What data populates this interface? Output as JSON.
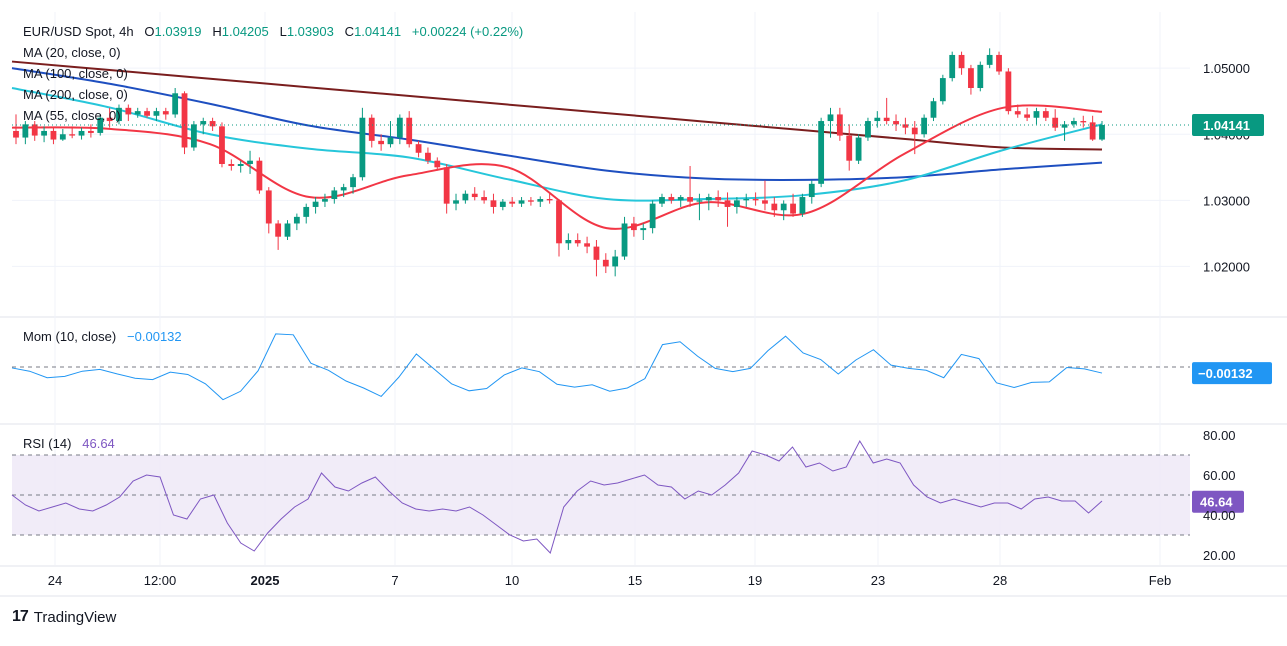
{
  "header": {
    "symbol": "EUR/USD Spot, 4h",
    "open_label": "O",
    "open": "1.03919",
    "high_label": "H",
    "high": "1.04205",
    "low_label": "L",
    "low": "1.03903",
    "close_label": "C",
    "close": "1.04141",
    "change": "+0.00224 (+0.22%)"
  },
  "ma_legend": [
    "MA (20, close, 0)",
    "MA (100, close, 0)",
    "MA (200, close, 0)",
    "MA (55, close, 0)"
  ],
  "momentum": {
    "label": "Mom (10, close)",
    "value": "−0.00132",
    "badge": "−0.00132"
  },
  "rsi": {
    "label": "RSI (14)",
    "value": "46.64",
    "badge": "46.64"
  },
  "price_badge": "1.04141",
  "branding": {
    "name": "TradingView",
    "logo": "17"
  },
  "colors": {
    "up": "#089981",
    "down": "#f23645",
    "ma20": "#f23645",
    "ma55": "#26c6da",
    "ma100": "#1e4fc0",
    "ma200": "#7a1e1e",
    "momentum": "#2196f3",
    "rsi": "#7e57c2",
    "rsi_band": "#ede7f6",
    "grid": "#f0f3fa",
    "axis_text": "#131722"
  },
  "chart_data": [
    {
      "type": "candlestick",
      "title": "EUR/USD Spot, 4h",
      "x_tick_labels": [
        "24",
        "12:00",
        "2025",
        "7",
        "10",
        "15",
        "19",
        "23",
        "28",
        "Feb"
      ],
      "y_ticks": [
        "1.02000",
        "1.03000",
        "1.04000",
        "1.05000"
      ],
      "ylim": [
        1.0125,
        1.0585
      ],
      "candles_ohlc": [
        [
          1.0405,
          1.043,
          1.0385,
          1.0395
        ],
        [
          1.0395,
          1.042,
          1.0385,
          1.0415
        ],
        [
          1.0415,
          1.042,
          1.039,
          1.0398
        ],
        [
          1.0398,
          1.0412,
          1.0388,
          1.0405
        ],
        [
          1.0405,
          1.041,
          1.0385,
          1.0392
        ],
        [
          1.0392,
          1.0408,
          1.039,
          1.04
        ],
        [
          1.04,
          1.0412,
          1.0394,
          1.0398
        ],
        [
          1.0398,
          1.041,
          1.0392,
          1.0405
        ],
        [
          1.0405,
          1.0415,
          1.0395,
          1.0402
        ],
        [
          1.0402,
          1.043,
          1.0398,
          1.0425
        ],
        [
          1.0425,
          1.044,
          1.041,
          1.042
        ],
        [
          1.042,
          1.0445,
          1.0415,
          1.044
        ],
        [
          1.044,
          1.0445,
          1.042,
          1.043
        ],
        [
          1.043,
          1.044,
          1.0425,
          1.0435
        ],
        [
          1.0435,
          1.044,
          1.0425,
          1.0428
        ],
        [
          1.0428,
          1.044,
          1.042,
          1.0435
        ],
        [
          1.0435,
          1.044,
          1.0422,
          1.043
        ],
        [
          1.043,
          1.047,
          1.0425,
          1.0462
        ],
        [
          1.0462,
          1.0465,
          1.037,
          1.038
        ],
        [
          1.038,
          1.042,
          1.0375,
          1.0415
        ],
        [
          1.0415,
          1.0425,
          1.04,
          1.042
        ],
        [
          1.042,
          1.0425,
          1.0405,
          1.0412
        ],
        [
          1.0412,
          1.0418,
          1.035,
          1.0355
        ],
        [
          1.0355,
          1.0362,
          1.0345,
          1.0352
        ],
        [
          1.0352,
          1.036,
          1.0342,
          1.0355
        ],
        [
          1.0355,
          1.0375,
          1.034,
          1.036
        ],
        [
          1.036,
          1.0365,
          1.031,
          1.0315
        ],
        [
          1.0315,
          1.032,
          1.025,
          1.0265
        ],
        [
          1.0265,
          1.027,
          1.0225,
          1.0245
        ],
        [
          1.0245,
          1.027,
          1.024,
          1.0265
        ],
        [
          1.0265,
          1.028,
          1.0255,
          1.0275
        ],
        [
          1.0275,
          1.0295,
          1.0265,
          1.029
        ],
        [
          1.029,
          1.0305,
          1.028,
          1.0298
        ],
        [
          1.0298,
          1.031,
          1.029,
          1.0302
        ],
        [
          1.0302,
          1.032,
          1.0295,
          1.0315
        ],
        [
          1.0315,
          1.0325,
          1.0305,
          1.032
        ],
        [
          1.032,
          1.034,
          1.031,
          1.0335
        ],
        [
          1.0335,
          1.044,
          1.033,
          1.0425
        ],
        [
          1.0425,
          1.043,
          1.038,
          1.039
        ],
        [
          1.039,
          1.04,
          1.0375,
          1.0385
        ],
        [
          1.0385,
          1.042,
          1.038,
          1.0395
        ],
        [
          1.0395,
          1.043,
          1.0385,
          1.0425
        ],
        [
          1.0425,
          1.0435,
          1.038,
          1.0385
        ],
        [
          1.0385,
          1.039,
          1.0365,
          1.0372
        ],
        [
          1.0372,
          1.038,
          1.0355,
          1.036
        ],
        [
          1.036,
          1.0365,
          1.0345,
          1.035
        ],
        [
          1.035,
          1.0355,
          1.028,
          1.0295
        ],
        [
          1.0295,
          1.031,
          1.0285,
          1.03
        ],
        [
          1.03,
          1.0315,
          1.0295,
          1.031
        ],
        [
          1.031,
          1.032,
          1.03,
          1.0305
        ],
        [
          1.0305,
          1.0315,
          1.0295,
          1.03
        ],
        [
          1.03,
          1.031,
          1.028,
          1.029
        ],
        [
          1.029,
          1.0302,
          1.0285,
          1.0298
        ],
        [
          1.0298,
          1.0305,
          1.029,
          1.0295
        ],
        [
          1.0295,
          1.0305,
          1.029,
          1.03
        ],
        [
          1.03,
          1.0305,
          1.0292,
          1.0298
        ],
        [
          1.0298,
          1.0306,
          1.029,
          1.0302
        ],
        [
          1.0302,
          1.031,
          1.0295,
          1.03
        ],
        [
          1.03,
          1.0302,
          1.0215,
          1.0235
        ],
        [
          1.0235,
          1.025,
          1.0225,
          1.024
        ],
        [
          1.024,
          1.025,
          1.023,
          1.0235
        ],
        [
          1.0235,
          1.0245,
          1.022,
          1.023
        ],
        [
          1.023,
          1.024,
          1.0185,
          1.021
        ],
        [
          1.021,
          1.022,
          1.019,
          1.02
        ],
        [
          1.02,
          1.0225,
          1.0185,
          1.0215
        ],
        [
          1.0215,
          1.0275,
          1.021,
          1.0265
        ],
        [
          1.0265,
          1.0275,
          1.0245,
          1.0255
        ],
        [
          1.0255,
          1.0265,
          1.024,
          1.0258
        ],
        [
          1.0258,
          1.03,
          1.025,
          1.0295
        ],
        [
          1.0295,
          1.031,
          1.029,
          1.0305
        ],
        [
          1.0305,
          1.031,
          1.0295,
          1.03
        ],
        [
          1.03,
          1.0308,
          1.029,
          1.0305
        ],
        [
          1.0305,
          1.0352,
          1.029,
          1.0298
        ],
        [
          1.0298,
          1.031,
          1.027,
          1.03
        ],
        [
          1.03,
          1.031,
          1.0285,
          1.0305
        ],
        [
          1.0305,
          1.0315,
          1.029,
          1.03
        ],
        [
          1.03,
          1.0312,
          1.026,
          1.029
        ],
        [
          1.029,
          1.0305,
          1.028,
          1.03
        ],
        [
          1.03,
          1.031,
          1.029,
          1.0302
        ],
        [
          1.0302,
          1.0312,
          1.0292,
          1.03
        ],
        [
          1.03,
          1.033,
          1.0285,
          1.0295
        ],
        [
          1.0295,
          1.0305,
          1.0275,
          1.0285
        ],
        [
          1.0285,
          1.03,
          1.027,
          1.0295
        ],
        [
          1.0295,
          1.031,
          1.0275,
          1.028
        ],
        [
          1.028,
          1.031,
          1.0275,
          1.0305
        ],
        [
          1.0305,
          1.033,
          1.0295,
          1.0325
        ],
        [
          1.0325,
          1.0425,
          1.032,
          1.042
        ],
        [
          1.042,
          1.044,
          1.0395,
          1.043
        ],
        [
          1.043,
          1.044,
          1.039,
          1.0398
        ],
        [
          1.0398,
          1.0415,
          1.0345,
          1.036
        ],
        [
          1.036,
          1.04,
          1.0355,
          1.0395
        ],
        [
          1.0395,
          1.0425,
          1.039,
          1.042
        ],
        [
          1.042,
          1.0435,
          1.041,
          1.0425
        ],
        [
          1.0425,
          1.0455,
          1.0415,
          1.042
        ],
        [
          1.042,
          1.043,
          1.0405,
          1.0415
        ],
        [
          1.0415,
          1.0425,
          1.04,
          1.041
        ],
        [
          1.041,
          1.042,
          1.037,
          1.04
        ],
        [
          1.04,
          1.043,
          1.0395,
          1.0425
        ],
        [
          1.0425,
          1.0455,
          1.042,
          1.045
        ],
        [
          1.045,
          1.049,
          1.0445,
          1.0485
        ],
        [
          1.0485,
          1.0525,
          1.048,
          1.052
        ],
        [
          1.052,
          1.0525,
          1.049,
          1.05
        ],
        [
          1.05,
          1.0505,
          1.046,
          1.047
        ],
        [
          1.047,
          1.051,
          1.0465,
          1.0505
        ],
        [
          1.0505,
          1.053,
          1.05,
          1.052
        ],
        [
          1.052,
          1.0525,
          1.049,
          1.0495
        ],
        [
          1.0495,
          1.05,
          1.043,
          1.0435
        ],
        [
          1.0435,
          1.0445,
          1.0425,
          1.043
        ],
        [
          1.043,
          1.044,
          1.042,
          1.0425
        ],
        [
          1.0425,
          1.044,
          1.0415,
          1.0435
        ],
        [
          1.0435,
          1.044,
          1.042,
          1.0425
        ],
        [
          1.0425,
          1.0438,
          1.0405,
          1.041
        ],
        [
          1.041,
          1.042,
          1.039,
          1.0415
        ],
        [
          1.0415,
          1.0425,
          1.041,
          1.042
        ],
        [
          1.042,
          1.0428,
          1.041,
          1.0418
        ],
        [
          1.0418,
          1.0428,
          1.039,
          1.0392
        ],
        [
          1.0392,
          1.042,
          1.039,
          1.0414
        ]
      ],
      "series": [
        {
          "name": "MA (200, close, 0)",
          "values": [
            1.051,
            1.0497,
            1.0484,
            1.0471,
            1.0458,
            1.0445,
            1.0432,
            1.0419,
            1.0406,
            1.0393,
            1.038,
            1.0377
          ]
        },
        {
          "name": "MA (100, close, 0)",
          "values": [
            1.05,
            1.0476,
            1.0446,
            1.0413,
            1.0392,
            1.0368,
            1.0345,
            1.0333,
            1.0331,
            1.0335,
            1.0347,
            1.0357
          ]
        },
        {
          "name": "MA (55, close, 0)",
          "values": [
            1.047,
            1.044,
            1.04,
            1.0378,
            1.0365,
            1.0332,
            1.0302,
            1.0302,
            1.0308,
            1.033,
            1.0376,
            1.0415
          ]
        },
        {
          "name": "MA (20, close, 0)",
          "values": [
            1.041,
            1.0408,
            1.0385,
            1.0305,
            1.0338,
            1.035,
            1.0258,
            1.0297,
            1.028,
            1.037,
            1.044,
            1.0434
          ]
        }
      ]
    },
    {
      "type": "line",
      "title": "Mom (10, close)",
      "last_value": -0.00132,
      "ylim": [
        -0.012,
        0.0105
      ],
      "values": [
        -0.0002,
        -0.0009,
        -0.0023,
        -0.002,
        -0.0009,
        -0.0005,
        -0.0015,
        -0.0024,
        -0.0027,
        -0.0011,
        -0.0016,
        -0.0036,
        -0.007,
        -0.0052,
        -0.0008,
        0.0071,
        0.0069,
        0.0008,
        -0.0007,
        -0.003,
        -0.0045,
        -0.0063,
        -0.0022,
        0.0028,
        -0.0004,
        -0.0036,
        -0.0051,
        -0.0046,
        -0.0017,
        -0.0002,
        -0.001,
        -0.0037,
        -0.0043,
        -0.0038,
        -0.0052,
        -0.0045,
        -0.0025,
        0.0048,
        0.0054,
        0.0023,
        -0.0003,
        -0.001,
        -0.0003,
        0.0035,
        0.0066,
        0.003,
        0.0016,
        -0.0015,
        0.0015,
        0.0037,
        0.0004,
        -0.0003,
        -0.0007,
        -0.0023,
        0.0027,
        0.0018,
        -0.0034,
        -0.0044,
        -0.0033,
        -0.0032,
        -0.0001,
        -0.0004,
        -0.0013
      ]
    },
    {
      "type": "line",
      "title": "RSI (14)",
      "last_value": 46.64,
      "y_ticks": [
        "20.00",
        "40.00",
        "60.00",
        "80.00"
      ],
      "bands": [
        30,
        50,
        70
      ],
      "ylim": [
        15,
        85
      ],
      "values": [
        50,
        45,
        42,
        44,
        46,
        43,
        42,
        45,
        49,
        57,
        60,
        59,
        40,
        38,
        48,
        50,
        36,
        26,
        22,
        31,
        38,
        44,
        48,
        61,
        54,
        52,
        56,
        59,
        52,
        46,
        43,
        42,
        43,
        42,
        44,
        40,
        35,
        30,
        27,
        28,
        21,
        44,
        52,
        57,
        55,
        56,
        58,
        60,
        55,
        54,
        48,
        52,
        50,
        55,
        61,
        72,
        70,
        67,
        74,
        64,
        66,
        62,
        64,
        77,
        66,
        68,
        66,
        55,
        49,
        46,
        48,
        46,
        44,
        46,
        46,
        43,
        48,
        49,
        47,
        47,
        41,
        47
      ]
    }
  ]
}
